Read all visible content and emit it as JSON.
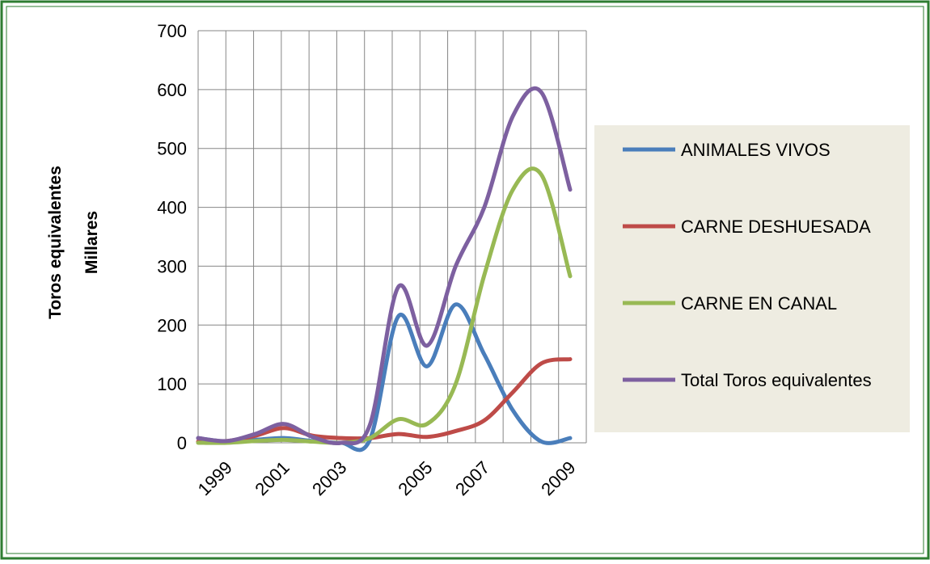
{
  "chart_data": {
    "type": "line",
    "y_label": [
      "Toros equivalentes",
      "Millares"
    ],
    "categories": [
      null,
      "1999",
      null,
      "2001",
      null,
      "2003",
      null,
      null,
      "2005",
      null,
      "2007",
      null,
      null,
      "2009"
    ],
    "series": [
      {
        "name": "ANIMALES VIVOS",
        "color": "#4a7ebb",
        "values": [
          8,
          2,
          5,
          8,
          3,
          0,
          5,
          215,
          130,
          235,
          150,
          55,
          2,
          8
        ]
      },
      {
        "name": "CARNE DESHUESADA",
        "color": "#be4b48",
        "values": [
          2,
          3,
          12,
          25,
          12,
          8,
          8,
          15,
          10,
          20,
          38,
          86,
          135,
          142
        ]
      },
      {
        "name": "CARNE EN CANAL",
        "color": "#98b954",
        "values": [
          0,
          0,
          3,
          5,
          2,
          0,
          8,
          40,
          32,
          100,
          285,
          430,
          455,
          283
        ]
      },
      {
        "name": "Total Toros equivalentes",
        "color": "#7d60a0",
        "values": [
          8,
          3,
          15,
          32,
          10,
          0,
          30,
          265,
          165,
          300,
          400,
          555,
          595,
          430
        ]
      }
    ],
    "ylim": [
      0,
      700
    ],
    "yticks": [
      0,
      100,
      200,
      300,
      400,
      500,
      600,
      700
    ],
    "grid": true,
    "legend": "right"
  }
}
